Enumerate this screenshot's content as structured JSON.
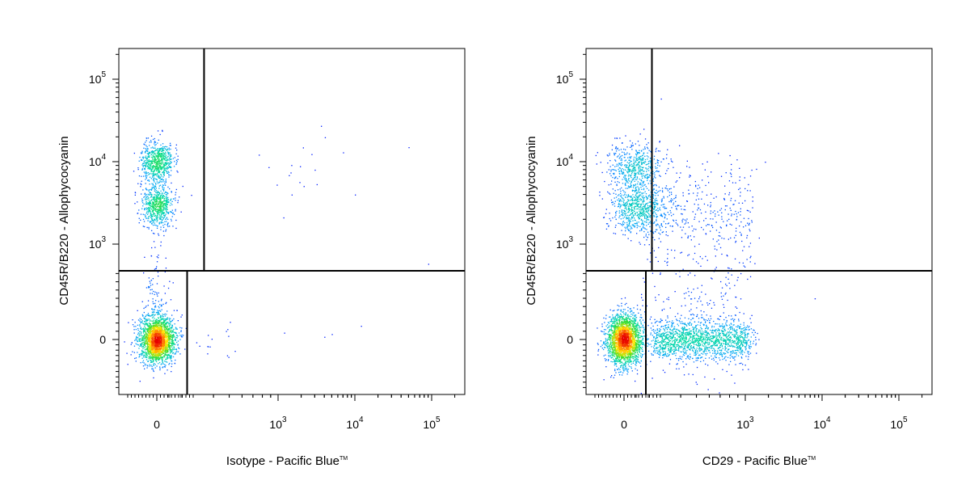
{
  "chart_data": [
    {
      "type": "scatter",
      "xlabel": "Isotype - Pacific Blue",
      "xlabel_mark": "TM",
      "ylabel": "CD45R/B220 - Allophycocyanin",
      "x_scale": "biexponential",
      "y_scale": "biexponential",
      "x_ticks": [
        {
          "base": "0"
        },
        {
          "base": "10",
          "exp": "3"
        },
        {
          "base": "10",
          "exp": "4"
        },
        {
          "base": "10",
          "exp": "5"
        }
      ],
      "y_ticks": [
        {
          "base": "0"
        },
        {
          "base": "10",
          "exp": "3"
        },
        {
          "base": "10",
          "exp": "4"
        },
        {
          "base": "10",
          "exp": "5"
        }
      ],
      "x_range": [
        -250,
        200000
      ],
      "y_range": [
        -1000,
        250000
      ],
      "quadrant_gates": {
        "upper_x_split": 350,
        "lower_x_split": 250,
        "y_split": 500
      },
      "populations": [
        {
          "x": 0,
          "y": 0,
          "count": 2200,
          "sx": 60,
          "sy": 130,
          "shape": "cloud"
        },
        {
          "x": 0,
          "y": 10000,
          "count": 650,
          "sx": 55,
          "sy": 0.13,
          "shape": "cloud"
        },
        {
          "x": 0,
          "y": 3000,
          "count": 650,
          "sx": 55,
          "sy": 0.14,
          "shape": "cloud"
        },
        {
          "x": 0,
          "y": 300,
          "count": 120,
          "sx": 45,
          "sy": 0.3,
          "shape": "cloud"
        },
        {
          "x": 400,
          "y": 0,
          "count": 15,
          "sx": 0.3,
          "sy": 100,
          "shape": "cloud"
        },
        {
          "x": 2000,
          "y": 6000,
          "count": 15,
          "sx": 0.5,
          "sy": 0.3,
          "shape": "cloud"
        }
      ],
      "scatter_points": [
        [
          1500,
          4000
        ],
        [
          3000,
          8000
        ],
        [
          7000,
          13000
        ],
        [
          10000,
          4000
        ],
        [
          50000,
          15000
        ],
        [
          90000,
          600
        ],
        [
          5000,
          40
        ],
        [
          4000,
          20
        ],
        [
          1200,
          50
        ],
        [
          12000,
          100
        ]
      ]
    },
    {
      "type": "scatter",
      "xlabel": "CD29 - Pacific Blue",
      "xlabel_mark": "TM",
      "ylabel": "CD45R/B220 - Allophycocyanin",
      "x_scale": "biexponential",
      "y_scale": "biexponential",
      "x_ticks": [
        {
          "base": "0"
        },
        {
          "base": "10",
          "exp": "3"
        },
        {
          "base": "10",
          "exp": "4"
        },
        {
          "base": "10",
          "exp": "5"
        }
      ],
      "y_ticks": [
        {
          "base": "0"
        },
        {
          "base": "10",
          "exp": "3"
        },
        {
          "base": "10",
          "exp": "4"
        },
        {
          "base": "10",
          "exp": "5"
        }
      ],
      "x_range": [
        -250,
        200000
      ],
      "y_range": [
        -1000,
        250000
      ],
      "quadrant_gates": {
        "upper_x_split": 230,
        "lower_x_split": 180,
        "y_split": 500
      },
      "populations": [
        {
          "x": 0,
          "y": 0,
          "count": 2300,
          "sx": 60,
          "sy": 140,
          "shape": "cloud"
        },
        {
          "x": 500,
          "y": 0,
          "count": 1500,
          "sx": [
            250,
            1100
          ],
          "sy": 110,
          "shape": "band"
        },
        {
          "x": 90,
          "y": 9000,
          "count": 500,
          "sx": 95,
          "sy": 0.15,
          "shape": "cloud"
        },
        {
          "x": 110,
          "y": 2800,
          "count": 700,
          "sx": 95,
          "sy": 0.17,
          "shape": "cloud"
        },
        {
          "x": 600,
          "y": 2500,
          "count": 350,
          "sx": [
            250,
            1200
          ],
          "sy": 0.3,
          "shape": "band"
        },
        {
          "x": 300,
          "y": 200,
          "count": 250,
          "sx": [
            180,
            1000
          ],
          "sy": 0.5,
          "shape": "band"
        }
      ],
      "scatter_points": [
        [
          1800,
          10000
        ],
        [
          800,
          12000
        ],
        [
          1200,
          8000
        ],
        [
          1500,
          1200
        ],
        [
          8000,
          300
        ]
      ]
    }
  ]
}
